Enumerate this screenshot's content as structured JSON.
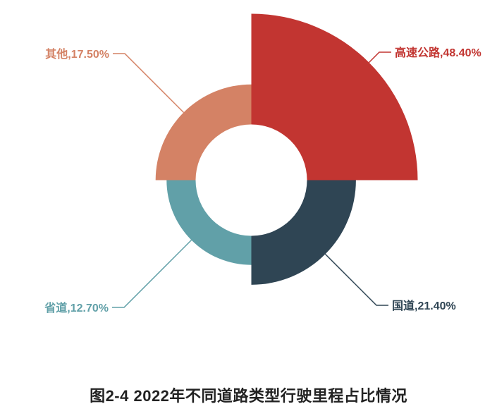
{
  "page": {
    "background_color": "#ffffff"
  },
  "chart_data": {
    "type": "pie",
    "variant": "rose-donut",
    "title": "图2-4 2022年不同道路类型行驶里程占比情况",
    "unit": "%",
    "legend_position": "none",
    "grid": false,
    "donut_hole": true,
    "slice_angle_degrees_each": 90,
    "slices": [
      {
        "name": "高速公路",
        "value": 48.4,
        "label": "高速公路,48.40%",
        "color": "#c23531",
        "label_side": "right-top"
      },
      {
        "name": "国道",
        "value": 21.4,
        "label": "国道,21.40%",
        "color": "#2f4554",
        "label_side": "right-bottom"
      },
      {
        "name": "省道",
        "value": 12.7,
        "label": "省道,12.70%",
        "color": "#61a0a8",
        "label_side": "left-bottom"
      },
      {
        "name": "其他",
        "value": 17.5,
        "label": "其他,17.50%",
        "color": "#d48265",
        "label_side": "left-top"
      }
    ]
  }
}
